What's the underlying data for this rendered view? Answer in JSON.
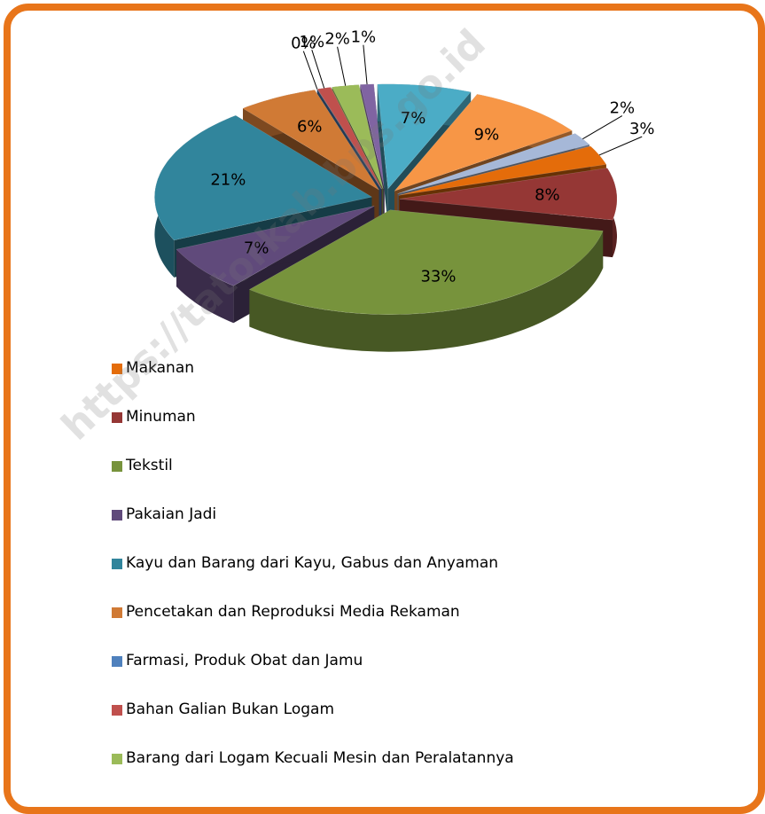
{
  "chart_data": {
    "type": "pie",
    "categories": [
      "Makanan",
      "Minuman",
      "Tekstil",
      "Pakaian Jadi",
      "Kayu dan  Barang dari Kayu,  Gabus dan Anyaman",
      "Pencetakan dan Reproduksi Media Rekaman",
      "Farmasi, Produk Obat dan Jamu",
      "Bahan Galian Bukan Logam",
      "Barang dari Logam Kecuali Mesin dan Peralatannya",
      null,
      null,
      null,
      null
    ],
    "values": [
      3,
      8,
      33,
      7,
      21,
      6,
      0,
      1,
      2,
      1,
      7,
      9,
      2
    ],
    "value_labels": [
      "3%",
      "8%",
      "33%",
      "7%",
      "21%",
      "6%",
      "0%",
      "1%",
      "2%",
      "1%",
      "7%",
      "9%",
      "2%"
    ],
    "colors": [
      "#e46c0a",
      "#953735",
      "#77933c",
      "#604a7b",
      "#31859c",
      "#d07a35",
      "#4f81bd",
      "#c0504d",
      "#9bbb59",
      "#8064a2",
      "#4bacc6",
      "#f79646",
      "#a6b8d8"
    ],
    "watermark": "https://tatorkab.bps.go.id"
  }
}
